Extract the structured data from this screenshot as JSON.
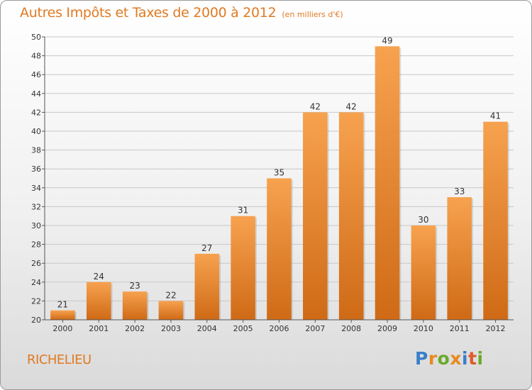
{
  "header": {
    "title": "Autres Impôts et Taxes de 2000 à 2012",
    "subtitle": "(en milliers d'€)"
  },
  "footer": {
    "commune": "RICHELIEU",
    "logo_letters": [
      {
        "char": "P",
        "color": "#3a7fc8"
      },
      {
        "char": "r",
        "color": "#e8891f"
      },
      {
        "char": "o",
        "color": "#6aaa2a"
      },
      {
        "char": "x",
        "color": "#e8891f"
      },
      {
        "char": "i",
        "color": "#3a7fc8"
      },
      {
        "char": "t",
        "color": "#e05a2a"
      },
      {
        "char": "i",
        "color": "#6aaa2a"
      }
    ]
  },
  "chart_data": {
    "type": "bar",
    "title": "Autres Impôts et Taxes de 2000 à 2012",
    "subtitle": "(en milliers d'€)",
    "categories": [
      "2000",
      "2001",
      "2002",
      "2003",
      "2004",
      "2005",
      "2006",
      "2007",
      "2008",
      "2009",
      "2010",
      "2011",
      "2012"
    ],
    "values": [
      21,
      24,
      23,
      22,
      27,
      31,
      35,
      42,
      42,
      49,
      30,
      33,
      41
    ],
    "ylim": [
      20,
      50
    ],
    "yticks": [
      20,
      22,
      24,
      26,
      28,
      30,
      32,
      34,
      36,
      38,
      40,
      42,
      44,
      46,
      48,
      50
    ],
    "xlabel": "",
    "ylabel": "",
    "grid": true,
    "data_labels": true,
    "colors": {
      "bar_top": "#f7a24f",
      "bar_bottom": "#cf6a16",
      "grid": "#c8c8c8",
      "axis": "#555555",
      "text": "#333333"
    }
  }
}
